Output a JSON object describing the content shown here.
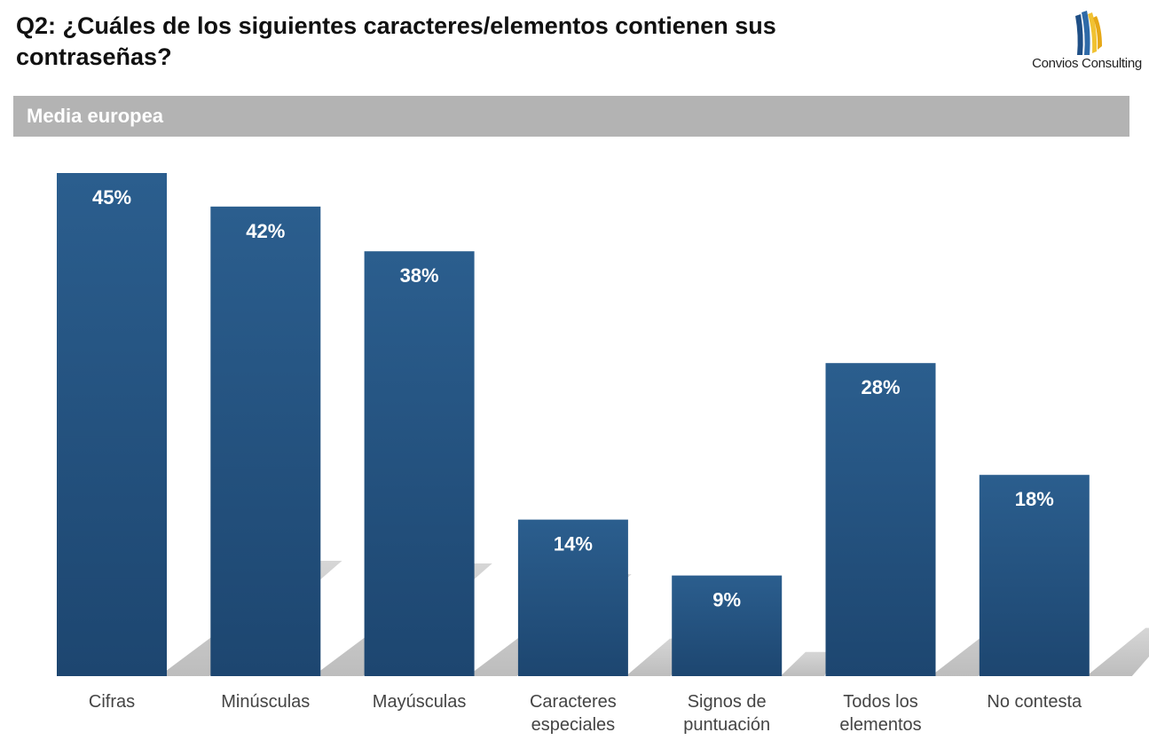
{
  "header": {
    "title": "Q2: ¿Cuáles de los siguientes caracteres/elementos contienen sus contraseñas?",
    "logo_text": "Convios Consulting"
  },
  "colors": {
    "bar_top": "#2b5e8e",
    "bar_bottom": "#1d4670",
    "band": "#b3b3b3",
    "shadow": "#c8c8c8"
  },
  "chart_data": {
    "type": "bar",
    "title": "Q2: ¿Cuáles de los siguientes caracteres/elementos contienen sus contraseñas?",
    "subtitle": "Media europea",
    "categories": [
      [
        "Cifras"
      ],
      [
        "Minúsculas"
      ],
      [
        "Mayúsculas"
      ],
      [
        "Caracteres",
        "especiales"
      ],
      [
        "Signos de",
        "puntuación"
      ],
      [
        "Todos los",
        "elementos"
      ],
      [
        "No contesta"
      ]
    ],
    "values": [
      45,
      42,
      38,
      14,
      9,
      28,
      18
    ],
    "value_labels": [
      "45%",
      "42%",
      "38%",
      "14%",
      "9%",
      "28%",
      "18%"
    ],
    "unit": "%",
    "ylim": [
      0,
      45
    ],
    "xlabel": "",
    "ylabel": "",
    "grid": false,
    "legend": "none"
  }
}
